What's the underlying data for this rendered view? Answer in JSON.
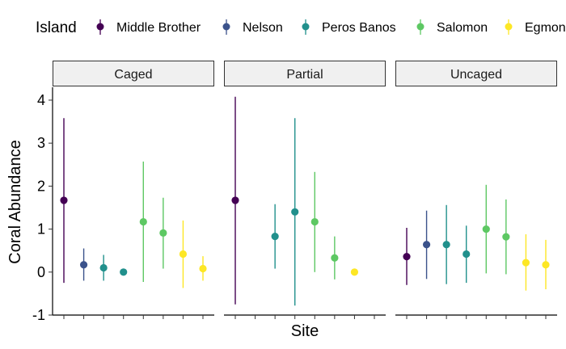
{
  "chart_data": {
    "type": "scatter",
    "subtype": "pointrange",
    "xlabel": "Site",
    "ylabel": "Coral Abundance",
    "ylim": [
      -1,
      4.3
    ],
    "yticks": [
      -1,
      0,
      1,
      2,
      3,
      4
    ],
    "yticklabels": [
      "-1",
      "0",
      "1",
      "2",
      "3",
      "4"
    ],
    "legend": {
      "title": "Island",
      "placement": "top"
    },
    "series": [
      {
        "name": "Middle Brother",
        "color": "#440154"
      },
      {
        "name": "Nelson",
        "color": "#3B528B"
      },
      {
        "name": "Peros Banos",
        "color": "#21908C"
      },
      {
        "name": "Salomon",
        "color": "#5DC863"
      },
      {
        "name": "Egmont",
        "color": "#FDE725"
      }
    ],
    "x_site_count": 8,
    "grid": false,
    "panels": [
      {
        "label": "Caged",
        "points": [
          {
            "site": 1,
            "island": "Middle Brother",
            "y": 1.67,
            "ymin": -0.25,
            "ymax": 3.58
          },
          {
            "site": 2,
            "island": "Nelson",
            "y": 0.17,
            "ymin": -0.2,
            "ymax": 0.55
          },
          {
            "site": 3,
            "island": "Peros Banos",
            "y": 0.1,
            "ymin": -0.2,
            "ymax": 0.4
          },
          {
            "site": 4,
            "island": "Peros Banos",
            "y": 0.0,
            "ymin": 0.0,
            "ymax": 0.0
          },
          {
            "site": 5,
            "island": "Salomon",
            "y": 1.17,
            "ymin": -0.23,
            "ymax": 2.57
          },
          {
            "site": 6,
            "island": "Salomon",
            "y": 0.91,
            "ymin": 0.08,
            "ymax": 1.73
          },
          {
            "site": 7,
            "island": "Egmont",
            "y": 0.42,
            "ymin": -0.37,
            "ymax": 1.2
          },
          {
            "site": 8,
            "island": "Egmont",
            "y": 0.08,
            "ymin": -0.2,
            "ymax": 0.37
          }
        ]
      },
      {
        "label": "Partial",
        "points": [
          {
            "site": 1,
            "island": "Middle Brother",
            "y": 1.67,
            "ymin": -0.75,
            "ymax": 4.08
          },
          {
            "site": 3,
            "island": "Peros Banos",
            "y": 0.83,
            "ymin": 0.08,
            "ymax": 1.58
          },
          {
            "site": 4,
            "island": "Peros Banos",
            "y": 1.4,
            "ymin": -0.78,
            "ymax": 3.58
          },
          {
            "site": 5,
            "island": "Salomon",
            "y": 1.17,
            "ymin": 0.0,
            "ymax": 2.33
          },
          {
            "site": 6,
            "island": "Salomon",
            "y": 0.33,
            "ymin": -0.17,
            "ymax": 0.83
          },
          {
            "site": 7,
            "island": "Egmont",
            "y": 0.0,
            "ymin": 0.0,
            "ymax": 0.0
          }
        ]
      },
      {
        "label": "Uncaged",
        "points": [
          {
            "site": 1,
            "island": "Middle Brother",
            "y": 0.36,
            "ymin": -0.3,
            "ymax": 1.03
          },
          {
            "site": 2,
            "island": "Nelson",
            "y": 0.64,
            "ymin": -0.16,
            "ymax": 1.43
          },
          {
            "site": 3,
            "island": "Peros Banos",
            "y": 0.64,
            "ymin": -0.28,
            "ymax": 1.56
          },
          {
            "site": 4,
            "island": "Peros Banos",
            "y": 0.42,
            "ymin": -0.25,
            "ymax": 1.08
          },
          {
            "site": 5,
            "island": "Salomon",
            "y": 1.0,
            "ymin": -0.03,
            "ymax": 2.03
          },
          {
            "site": 6,
            "island": "Salomon",
            "y": 0.82,
            "ymin": -0.05,
            "ymax": 1.69
          },
          {
            "site": 7,
            "island": "Egmont",
            "y": 0.22,
            "ymin": -0.43,
            "ymax": 0.88
          },
          {
            "site": 8,
            "island": "Egmont",
            "y": 0.17,
            "ymin": -0.4,
            "ymax": 0.75
          }
        ]
      }
    ]
  }
}
